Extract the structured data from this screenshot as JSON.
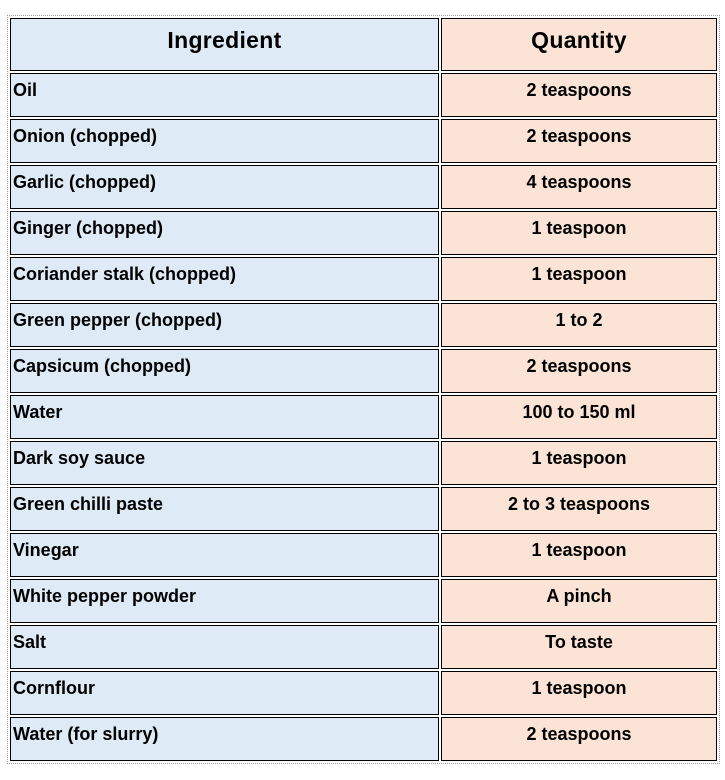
{
  "table": {
    "header": [
      "Ingredient",
      "Quantity"
    ],
    "rows": [
      [
        "Oil",
        "2 teaspoons"
      ],
      [
        "Onion (chopped)",
        "2 teaspoons"
      ],
      [
        "Garlic (chopped)",
        "4 teaspoons"
      ],
      [
        "Ginger (chopped)",
        "1 teaspoon"
      ],
      [
        "Coriander stalk (chopped)",
        "1 teaspoon"
      ],
      [
        "Green pepper (chopped)",
        "1 to 2"
      ],
      [
        "Capsicum (chopped)",
        "2 teaspoons"
      ],
      [
        "Water",
        "100 to 150 ml"
      ],
      [
        "Dark soy sauce",
        "1 teaspoon"
      ],
      [
        "Green chilli paste",
        "2 to 3 teaspoons"
      ],
      [
        "Vinegar",
        "1 teaspoon"
      ],
      [
        "White pepper powder",
        "A pinch"
      ],
      [
        "Salt",
        "To taste"
      ],
      [
        "Cornflour",
        "1 teaspoon"
      ],
      [
        "Water (for slurry)",
        "2 teaspoons"
      ]
    ]
  }
}
